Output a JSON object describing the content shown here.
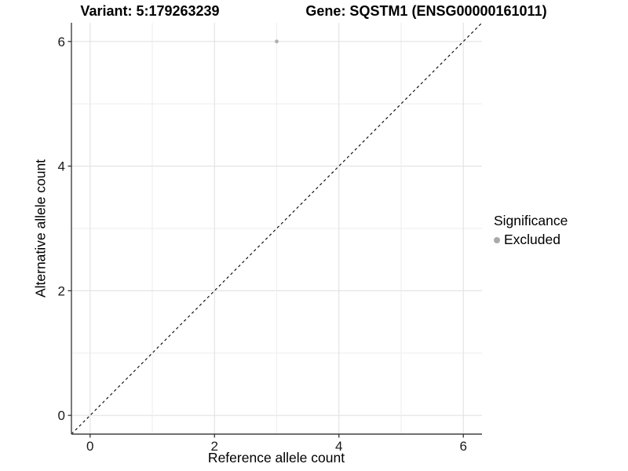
{
  "chart_data": {
    "type": "scatter",
    "title_variant": "Variant: 5:179263239",
    "title_gene": "Gene: SQSTM1 (ENSG00000161011)",
    "xlabel": "Reference allele count",
    "ylabel": "Alternative allele count",
    "xlim": [
      -0.3,
      6.3
    ],
    "ylim": [
      -0.3,
      6.3
    ],
    "x_ticks": [
      0,
      2,
      4,
      6
    ],
    "y_ticks": [
      0,
      2,
      4,
      6
    ],
    "gridline_positions": [
      0,
      1,
      2,
      3,
      4,
      5,
      6
    ],
    "grid": true,
    "points": [
      {
        "x": 3,
        "y": 6,
        "significance": "Excluded"
      }
    ],
    "reference_line": {
      "type": "identity",
      "slope": 1,
      "intercept": 0,
      "style": "dashed"
    },
    "legend": {
      "position": "right",
      "title": "Significance",
      "items": [
        {
          "label": "Excluded",
          "color": "#aaaaaa"
        }
      ]
    },
    "colors": {
      "point": "#b0b0b0",
      "legend_key": "#a3a3a3",
      "grid_major": "#e3e3e3",
      "grid_minor": "#eeeeee",
      "axis_line": "#404040",
      "tick_mark": "#333333",
      "reference_line": "#000000",
      "background": "#ffffff"
    }
  }
}
